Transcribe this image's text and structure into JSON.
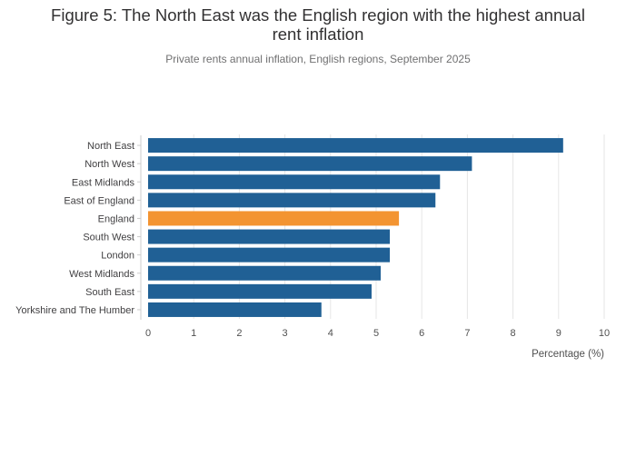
{
  "header": {
    "title_line1": "Figure 5: The North East was the English region with the highest annual",
    "title_line2": "rent inflation",
    "subtitle": "Private rents annual inflation, English regions, September 2025"
  },
  "chart_data": {
    "type": "bar",
    "orientation": "horizontal",
    "categories": [
      "North East",
      "North West",
      "East Midlands",
      "East of England",
      "England",
      "South West",
      "London",
      "West Midlands",
      "South East",
      "Yorkshire and The Humber"
    ],
    "values": [
      9.1,
      7.1,
      6.4,
      6.3,
      5.5,
      5.3,
      5.3,
      5.1,
      4.9,
      3.8
    ],
    "highlight_category": "England",
    "xlabel": "Percentage (%)",
    "ylabel": "",
    "xlim": [
      0,
      10
    ],
    "x_ticks": [
      "0",
      "1",
      "2",
      "3",
      "4",
      "5",
      "6",
      "7",
      "8",
      "9",
      "10"
    ],
    "grid": true,
    "colors": {
      "bar": "#206095",
      "highlight": "#f39431",
      "grid": "#e6e6e6"
    }
  }
}
